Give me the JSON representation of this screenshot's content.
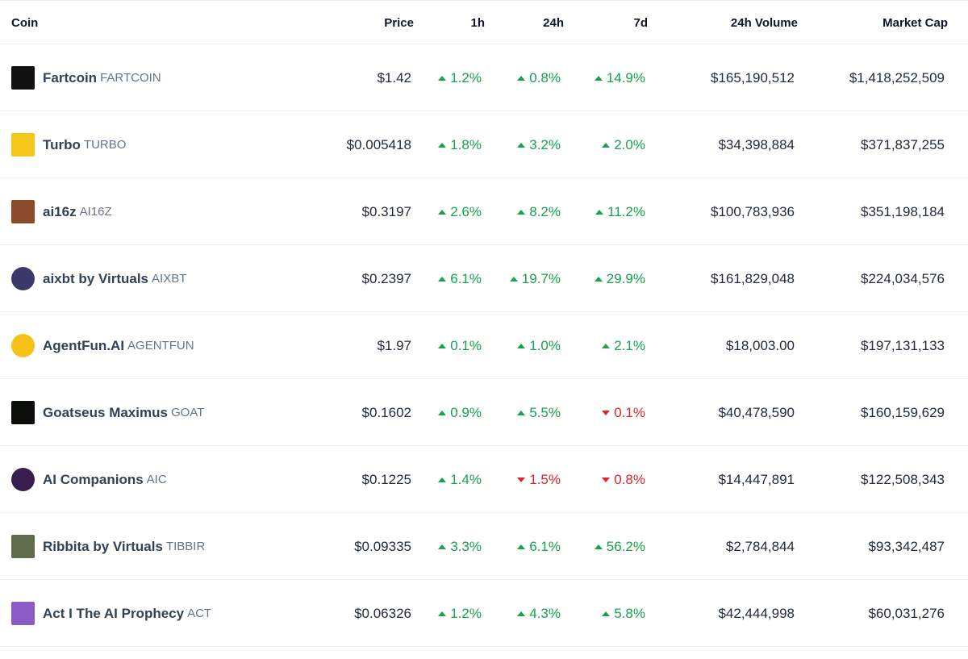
{
  "header": {
    "coin": "Coin",
    "price": "Price",
    "h1": "1h",
    "h24": "24h",
    "d7": "7d",
    "volume": "24h Volume",
    "market_cap": "Market Cap"
  },
  "rows": [
    {
      "name": "Fartcoin",
      "symbol": "FARTCOIN",
      "icon": "fartcoin-logo",
      "logo_bg": "#111111",
      "price": "$1.42",
      "h1": "1.2%",
      "h1_dir": "up",
      "h24": "0.8%",
      "h24_dir": "up",
      "d7": "14.9%",
      "d7_dir": "up",
      "volume": "$165,190,512",
      "market_cap": "$1,418,252,509"
    },
    {
      "name": "Turbo",
      "symbol": "TURBO",
      "icon": "turbo-logo",
      "logo_bg": "#f5c518",
      "price": "$0.005418",
      "h1": "1.8%",
      "h1_dir": "up",
      "h24": "3.2%",
      "h24_dir": "up",
      "d7": "2.0%",
      "d7_dir": "up",
      "volume": "$34,398,884",
      "market_cap": "$371,837,255"
    },
    {
      "name": "ai16z",
      "symbol": "AI16Z",
      "icon": "ai16z-logo",
      "logo_bg": "#8a4b2a",
      "price": "$0.3197",
      "h1": "2.6%",
      "h1_dir": "up",
      "h24": "8.2%",
      "h24_dir": "up",
      "d7": "11.2%",
      "d7_dir": "up",
      "volume": "$100,783,936",
      "market_cap": "$351,198,184"
    },
    {
      "name": "aixbt by Virtuals",
      "symbol": "AIXBT",
      "icon": "aixbt-logo",
      "logo_bg": "#3b3a6b",
      "price": "$0.2397",
      "h1": "6.1%",
      "h1_dir": "up",
      "h24": "19.7%",
      "h24_dir": "up",
      "d7": "29.9%",
      "d7_dir": "up",
      "volume": "$161,829,048",
      "market_cap": "$224,034,576"
    },
    {
      "name": "AgentFun.AI",
      "symbol": "AGENTFUN",
      "icon": "agentfun-logo",
      "logo_bg": "#f4c21b",
      "price": "$1.97",
      "h1": "0.1%",
      "h1_dir": "up",
      "h24": "1.0%",
      "h24_dir": "up",
      "d7": "2.1%",
      "d7_dir": "up",
      "volume": "$18,003.00",
      "market_cap": "$197,131,133"
    },
    {
      "name": "Goatseus Maximus",
      "symbol": "GOAT",
      "icon": "goat-logo",
      "logo_bg": "#0b0f0b",
      "price": "$0.1602",
      "h1": "0.9%",
      "h1_dir": "up",
      "h24": "5.5%",
      "h24_dir": "up",
      "d7": "0.1%",
      "d7_dir": "down",
      "volume": "$40,478,590",
      "market_cap": "$160,159,629"
    },
    {
      "name": "AI Companions",
      "symbol": "AIC",
      "icon": "ai-companions-logo",
      "logo_bg": "#3a1d4f",
      "price": "$0.1225",
      "h1": "1.4%",
      "h1_dir": "up",
      "h24": "1.5%",
      "h24_dir": "down",
      "d7": "0.8%",
      "d7_dir": "down",
      "volume": "$14,447,891",
      "market_cap": "$122,508,343"
    },
    {
      "name": "Ribbita by Virtuals",
      "symbol": "TIBBIR",
      "icon": "ribbita-logo",
      "logo_bg": "#5f6b4a",
      "price": "$0.09335",
      "h1": "3.3%",
      "h1_dir": "up",
      "h24": "6.1%",
      "h24_dir": "up",
      "d7": "56.2%",
      "d7_dir": "up",
      "volume": "$2,784,844",
      "market_cap": "$93,342,487"
    },
    {
      "name": "Act I The AI Prophecy",
      "symbol": "ACT",
      "icon": "act-logo",
      "logo_bg": "#8b5cc7",
      "price": "$0.06326",
      "h1": "1.2%",
      "h1_dir": "up",
      "h24": "4.3%",
      "h24_dir": "up",
      "d7": "5.8%",
      "d7_dir": "up",
      "volume": "$42,444,998",
      "market_cap": "$60,031,276"
    }
  ],
  "colors": {
    "up": "#16a34a",
    "down": "#dc2626",
    "text": "#1e293b",
    "muted": "#64748b"
  }
}
